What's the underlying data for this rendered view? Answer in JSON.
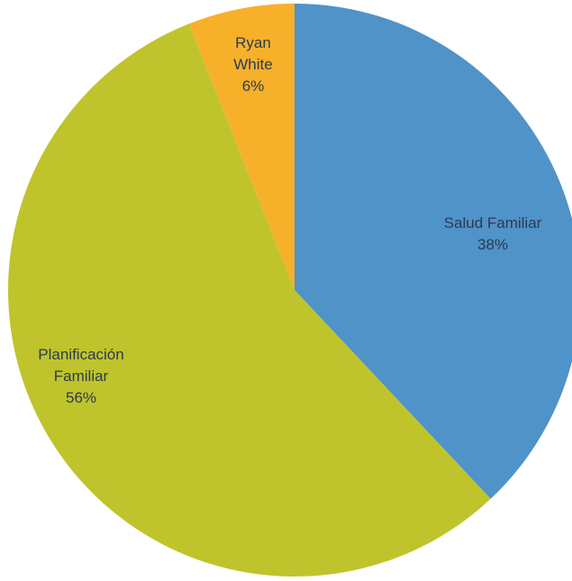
{
  "chart_data": {
    "type": "pie",
    "categories": [
      "Salud Familiar",
      "Planificación Familiar",
      "Ryan White"
    ],
    "values": [
      38,
      56,
      6
    ],
    "value_labels": [
      "38%",
      "56%",
      "6%"
    ],
    "colors": [
      "#4f93c8",
      "#bfc42c",
      "#f7b02a"
    ]
  }
}
